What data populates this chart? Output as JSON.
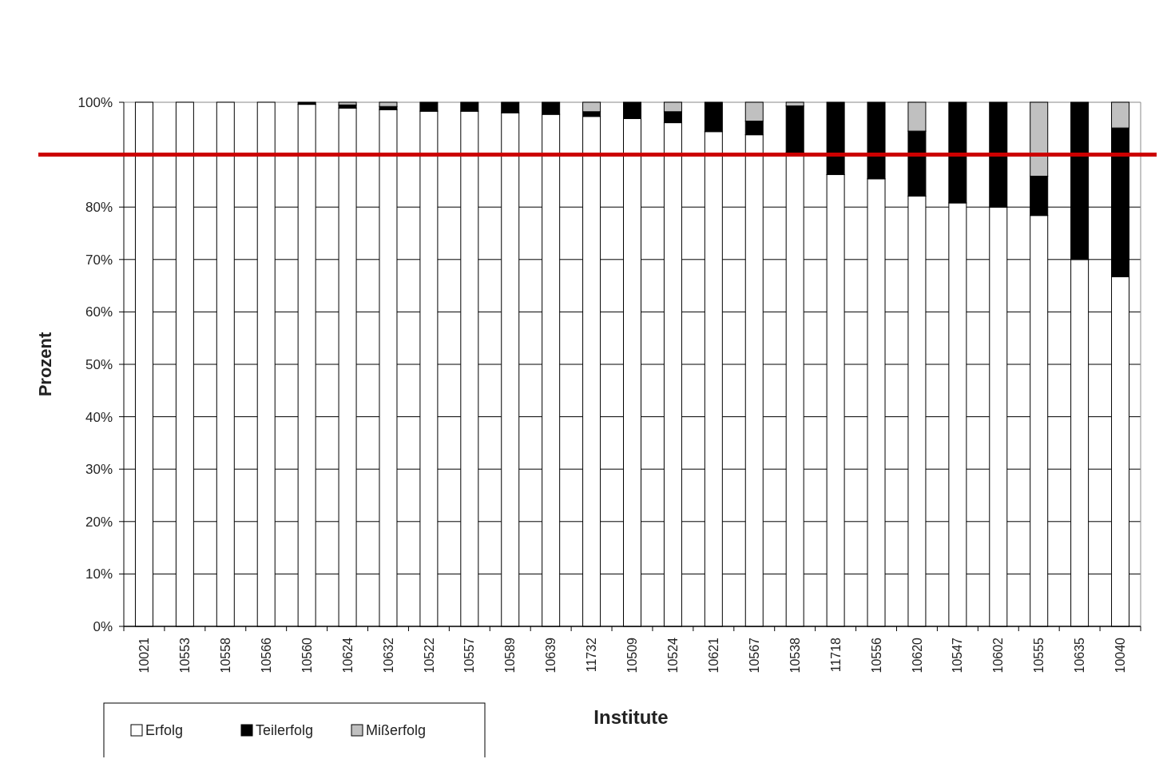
{
  "chart_data": {
    "type": "bar",
    "stacked": true,
    "xlabel": "Institute",
    "ylabel": "Prozent",
    "categories": [
      "10021",
      "10553",
      "10558",
      "10566",
      "10560",
      "10624",
      "10632",
      "10522",
      "10557",
      "10589",
      "10639",
      "11732",
      "10509",
      "10524",
      "10621",
      "10567",
      "10538",
      "11718",
      "10556",
      "10620",
      "10547",
      "10602",
      "10555",
      "10635",
      "10040"
    ],
    "series": [
      {
        "name": "Erfolg",
        "color": "#ffffff",
        "values": [
          100,
          100,
          100,
          100,
          99.6,
          98.9,
          98.6,
          98.3,
          98.3,
          98.0,
          97.7,
          97.3,
          96.9,
          96.1,
          94.4,
          93.8,
          90.4,
          86.2,
          85.4,
          82.1,
          80.8,
          80.0,
          78.4,
          70.0,
          66.7
        ]
      },
      {
        "name": "Teilerfolg",
        "color": "#000000",
        "values": [
          0,
          0,
          0,
          0,
          0.4,
          0.6,
          0.6,
          1.7,
          1.7,
          2.0,
          2.3,
          0.9,
          3.1,
          2.1,
          5.6,
          2.6,
          8.9,
          13.8,
          14.6,
          12.4,
          19.2,
          20.0,
          7.5,
          30.0,
          28.4
        ]
      },
      {
        "name": "Mißerfolg",
        "color": "#c0c0c0",
        "values": [
          0,
          0,
          0,
          0,
          0,
          0.5,
          0.8,
          0,
          0,
          0,
          0,
          1.8,
          0,
          1.8,
          0,
          3.6,
          0.7,
          0,
          0,
          5.5,
          0,
          0,
          14.1,
          0,
          4.9
        ]
      }
    ],
    "ylim": [
      0,
      100
    ],
    "yticks": [
      {
        "value": 0,
        "label": "0%"
      },
      {
        "value": 10,
        "label": "10%"
      },
      {
        "value": 20,
        "label": "20%"
      },
      {
        "value": 30,
        "label": "30%"
      },
      {
        "value": 40,
        "label": "40%"
      },
      {
        "value": 50,
        "label": "50%"
      },
      {
        "value": 60,
        "label": "60%"
      },
      {
        "value": 70,
        "label": "70%"
      },
      {
        "value": 80,
        "label": "80%"
      },
      {
        "value": 90,
        "label": null
      },
      {
        "value": 100,
        "label": "100%"
      }
    ],
    "grid": "y",
    "legend": "bottom left",
    "ref_lines": [
      {
        "axis": "y",
        "value": 90,
        "color": "#cc0000",
        "line_style": "solid"
      }
    ]
  }
}
